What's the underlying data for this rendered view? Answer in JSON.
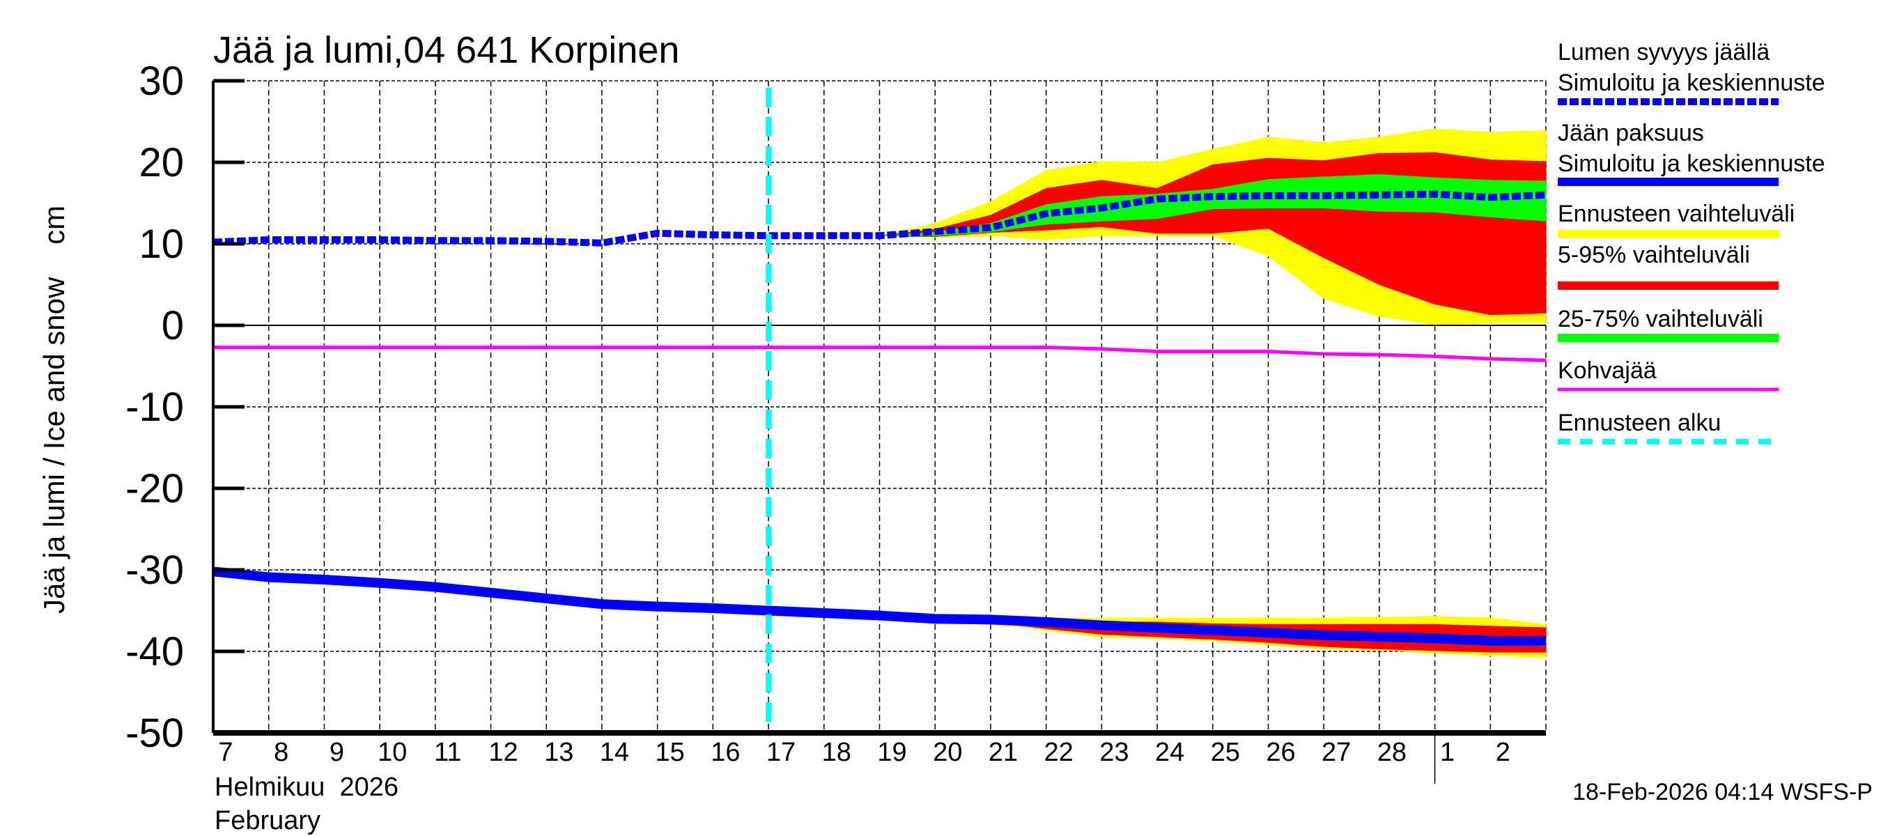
{
  "chart_data": {
    "type": "area",
    "title": "Jää ja lumi,04 641 Korpinen",
    "ylabel": "Jää ja lumi / Ice and snow    cm",
    "xlabel_fi": "Helmikuu  2026",
    "xlabel_en": "February",
    "ylim": [
      -50,
      30
    ],
    "yticks": [
      "30",
      "20",
      "10",
      "0",
      "-10",
      "-20",
      "-30",
      "-40",
      "-50"
    ],
    "xlim": [
      "2026-02-07",
      "2026-03-03"
    ],
    "x_tick_labels": [
      "7",
      "8",
      "9",
      "10",
      "11",
      "12",
      "13",
      "14",
      "15",
      "16",
      "17",
      "18",
      "19",
      "20",
      "21",
      "22",
      "23",
      "24",
      "25",
      "26",
      "27",
      "28",
      "1",
      "2"
    ],
    "grid": true,
    "legend_placement": "right",
    "forecast_start": "2026-02-17",
    "x": [
      "2026-02-07",
      "2026-02-08",
      "2026-02-09",
      "2026-02-10",
      "2026-02-11",
      "2026-02-12",
      "2026-02-13",
      "2026-02-14",
      "2026-02-15",
      "2026-02-16",
      "2026-02-17",
      "2026-02-18",
      "2026-02-19",
      "2026-02-20",
      "2026-02-21",
      "2026-02-22",
      "2026-02-23",
      "2026-02-24",
      "2026-02-25",
      "2026-02-26",
      "2026-02-27",
      "2026-02-28",
      "2026-03-01",
      "2026-03-02",
      "2026-03-03"
    ],
    "snow": {
      "median": [
        10.2,
        10.5,
        10.5,
        10.5,
        10.4,
        10.4,
        10.3,
        10.1,
        11.3,
        11.1,
        11.0,
        11.0,
        11.0,
        11.5,
        12.0,
        13.7,
        14.4,
        15.5,
        15.8,
        15.9,
        15.9,
        16.0,
        16.1,
        15.7,
        16.0
      ],
      "range_max": [
        null,
        null,
        null,
        null,
        null,
        null,
        null,
        null,
        null,
        null,
        null,
        null,
        11.0,
        12.5,
        15.2,
        19.0,
        20.1,
        20.0,
        21.6,
        23.1,
        22.4,
        23.1,
        24.1,
        23.7,
        23.9
      ],
      "p95": [
        null,
        null,
        null,
        null,
        null,
        null,
        null,
        null,
        null,
        null,
        null,
        null,
        11.0,
        11.8,
        13.5,
        16.8,
        17.8,
        16.8,
        19.7,
        20.5,
        20.2,
        21.1,
        21.2,
        20.3,
        20.1
      ],
      "p75": [
        null,
        null,
        null,
        null,
        null,
        null,
        null,
        null,
        null,
        null,
        null,
        null,
        11.0,
        11.4,
        12.5,
        14.8,
        15.8,
        16.1,
        16.7,
        17.9,
        18.2,
        18.5,
        18.1,
        17.8,
        17.7
      ],
      "p25": [
        null,
        null,
        null,
        null,
        null,
        null,
        null,
        null,
        null,
        null,
        null,
        null,
        11.0,
        11.0,
        11.5,
        12.4,
        12.8,
        13.1,
        14.3,
        14.4,
        14.4,
        14.0,
        13.9,
        13.3,
        12.8
      ],
      "p5": [
        null,
        null,
        null,
        null,
        null,
        null,
        null,
        null,
        null,
        null,
        null,
        null,
        11.0,
        10.9,
        11.4,
        11.7,
        12.1,
        11.3,
        11.3,
        11.9,
        8.3,
        5.0,
        2.6,
        1.3,
        1.5
      ],
      "range_min": [
        null,
        null,
        null,
        null,
        null,
        null,
        null,
        null,
        null,
        null,
        null,
        null,
        11.0,
        10.8,
        11.0,
        10.5,
        11.0,
        11.0,
        11.0,
        8.5,
        3.3,
        1.1,
        0.1,
        0.3,
        0.4
      ]
    },
    "ice": {
      "median": [
        -30.2,
        -30.9,
        -31.2,
        -31.6,
        -32.1,
        -32.8,
        -33.5,
        -34.2,
        -34.5,
        -34.7,
        -35.0,
        -35.3,
        -35.6,
        -36.0,
        -36.1,
        -36.4,
        -36.8,
        -37.1,
        -37.4,
        -37.7,
        -38.0,
        -38.2,
        -38.4,
        -38.7,
        -38.7
      ],
      "range_max": [
        null,
        null,
        null,
        null,
        null,
        null,
        null,
        null,
        null,
        null,
        null,
        null,
        null,
        -36.0,
        -36.0,
        -35.9,
        -35.9,
        -35.9,
        -35.9,
        -35.9,
        -35.9,
        -35.8,
        -35.7,
        -35.9,
        -36.7
      ],
      "p95": [
        null,
        null,
        null,
        null,
        null,
        null,
        null,
        null,
        null,
        null,
        null,
        null,
        null,
        -36.0,
        -36.1,
        -36.3,
        -36.4,
        -36.4,
        -36.6,
        -36.7,
        -36.7,
        -36.7,
        -36.7,
        -36.9,
        -37.1
      ],
      "p75": [
        null,
        null,
        null,
        null,
        null,
        null,
        null,
        null,
        null,
        null,
        null,
        null,
        null,
        -36.0,
        -36.0,
        -36.3,
        -36.6,
        -36.9,
        -37.2,
        -37.5,
        -37.8,
        -38.0,
        -38.1,
        -38.2,
        -38.3
      ],
      "p25": [
        null,
        null,
        null,
        null,
        null,
        null,
        null,
        null,
        null,
        null,
        null,
        null,
        null,
        -36.0,
        -36.2,
        -36.6,
        -37.0,
        -37.3,
        -37.6,
        -37.9,
        -38.2,
        -38.4,
        -38.7,
        -39.1,
        -39.3
      ],
      "p5": [
        null,
        null,
        null,
        null,
        null,
        null,
        null,
        null,
        null,
        null,
        null,
        null,
        null,
        -36.0,
        -36.4,
        -37.2,
        -37.9,
        -38.2,
        -38.5,
        -38.9,
        -39.4,
        -39.7,
        -39.9,
        -40.1,
        -40.1
      ],
      "range_min": [
        null,
        null,
        null,
        null,
        null,
        null,
        null,
        null,
        null,
        null,
        null,
        null,
        null,
        -36.0,
        -36.5,
        -37.4,
        -38.2,
        -38.4,
        -38.7,
        -39.2,
        -39.7,
        -39.8,
        -40.2,
        -40.5,
        -40.7
      ]
    },
    "slush_ice": [
      -2.7,
      -2.7,
      -2.7,
      -2.7,
      -2.7,
      -2.7,
      -2.7,
      -2.7,
      -2.7,
      -2.7,
      -2.7,
      -2.7,
      -2.7,
      -2.7,
      -2.7,
      -2.7,
      -2.9,
      -3.2,
      -3.2,
      -3.2,
      -3.5,
      -3.6,
      -3.8,
      -4.1,
      -4.3
    ],
    "legend": [
      {
        "label": "Lumen syvyys jäällä",
        "label2": "Simuloitu ja keskiennuste",
        "style": "dashed",
        "color": "#0000ff"
      },
      {
        "label": "Jään paksuus",
        "label2": "Simuloitu ja keskiennuste",
        "style": "solid",
        "color": "#0000ff"
      },
      {
        "label": "Ennusteen vaihteluväli",
        "style": "band",
        "color": "#ffff00"
      },
      {
        "label": "5-95% vaihteluväli",
        "style": "band",
        "color": "#ff0000"
      },
      {
        "label": "25-75% vaihteluväli",
        "style": "band",
        "color": "#00ff00"
      },
      {
        "label": "Kohvajää",
        "style": "solid",
        "color": "#ff00ff"
      },
      {
        "label": "Ennusteen alku",
        "style": "dashed",
        "color": "#00ffff"
      }
    ],
    "footer": "18-Feb-2026 04:14 WSFS-P"
  }
}
